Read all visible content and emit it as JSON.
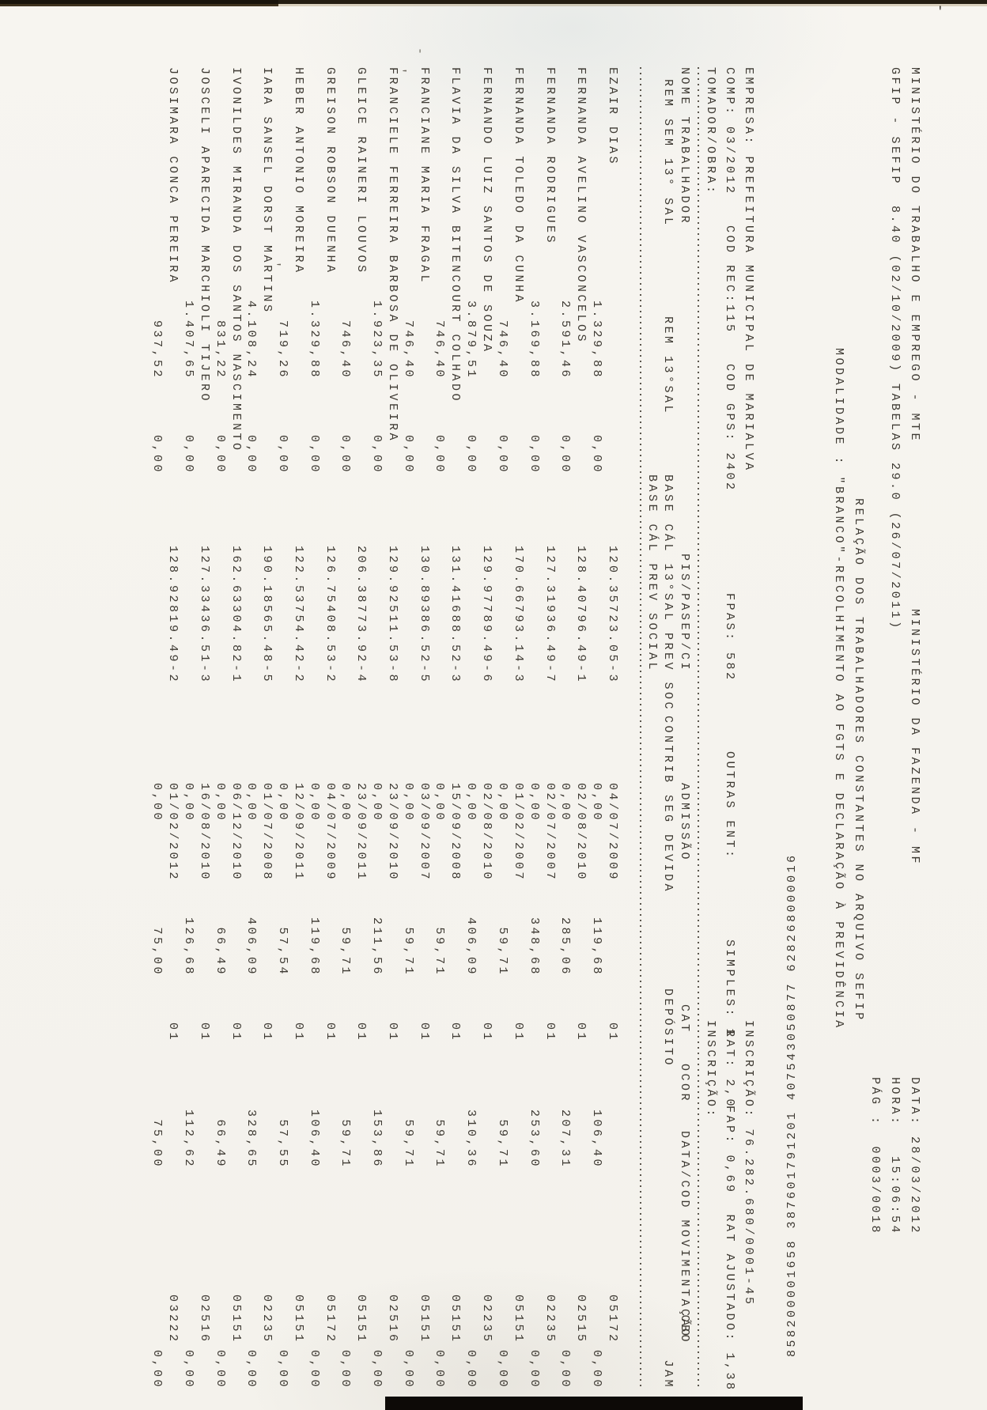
{
  "header": {
    "ministry_left": "MINISTÉRIO DO TRABALHO E EMPREGO - MTE",
    "ministry_right": "MINISTÉRIO DA FAZENDA - MF",
    "date_stamp": "DATA: 28/03/2012",
    "gfip_line": "GFIP - SEFIP  8.40 (02/10/2009) TABELAS 29.0 (26/07/2011)",
    "hora_stamp": "HORA:   15:06:54",
    "pag_stamp": "PÁG :  0003/0018",
    "report_title": "RELAÇÃO DOS TRABALHADORES CONSTANTES NO ARQUIVO SEFIP",
    "modalidade": "MODALIDADE : \"BRANCO\"-RECOLHIMENTO AO FGTS E DECLARAÇÃO À PREVIDÊNCIA",
    "barcode_digits": "858200001658 387601791201 407543050877 628268000016"
  },
  "empresa": {
    "empresa_line": "EMPRESA: PREFEITURA MUNICIPAL DE MARIALVA",
    "inscricao": "INSCRIÇÃO: 76.282.680/0001-45",
    "comp_line": "COMP: 03/2012   COD REC:115   COD GPS: 2402",
    "fpas": "FPAS: 582",
    "outras_ent": "OUTRAS ENT:",
    "simples": "SIMPLES: 1",
    "rat": "RAT: 2,0",
    "fap": "FAP: 0,69  RAT AJUSTADO: 1,38",
    "tomador": "TOMADOR/OBRA:",
    "tomador_inscricao": "INSCRIÇÃO:"
  },
  "table": {
    "headers": {
      "nome": "NOME TRABALHADOR",
      "pis": "PIS/PASEP/CI",
      "admissao": "ADMISSÃO",
      "cat": "CAT",
      "ocor": "OCOR",
      "movimentacao": "DATA/COD MOVIMENTAÇÃO",
      "cbo": "CBO",
      "rem_sem_13": "REM SEM 13° SAL",
      "rem_13": "REM 13°SAL",
      "base_13": "BASE CÁL 13°SAL PREV SOC",
      "contrib": "CONTRIB SEG DEVIDA",
      "deposito": "DEPÓSITO",
      "jam": "JAM",
      "base_prev": "BASE CÁL PREV SOCIAL"
    },
    "rows": [
      {
        "name": "EZAIR DIAS",
        "rem_sem_13": "1.329,88",
        "rem_13": "0,00",
        "pis": "120.35723.05-3",
        "base_13": "0,00",
        "admissao": "04/07/2009",
        "cat": "01",
        "contrib": "119,68",
        "deposito": "106,40",
        "cbo": "05172",
        "jam": "0,00"
      },
      {
        "name": "FERNANDA AVELINO VASCONCELOS",
        "rem_sem_13": "2.591,46",
        "rem_13": "0,00",
        "pis": "128.40796.49-1",
        "base_13": "0,00",
        "admissao": "02/08/2010",
        "cat": "01",
        "contrib": "285,06",
        "deposito": "207,31",
        "cbo": "02515",
        "jam": "0,00"
      },
      {
        "name": "FERNANDA RODRIGUES",
        "rem_sem_13": "3.169,88",
        "rem_13": "0,00",
        "pis": "127.31936.49-7",
        "base_13": "0,00",
        "admissao": "02/07/2007",
        "cat": "01",
        "contrib": "348,68",
        "deposito": "253,60",
        "cbo": "02235",
        "jam": "0,00"
      },
      {
        "name": "FERNANDA TOLEDO DA CUNHA",
        "rem_sem_13": "746,40",
        "rem_13": "0,00",
        "pis": "170.66793.14-3",
        "base_13": "0,00",
        "admissao": "01/02/2007",
        "cat": "01",
        "contrib": "59,71",
        "deposito": "59,71",
        "cbo": "05151",
        "jam": "0,00"
      },
      {
        "name": "FERNANDO LUIZ SANTOS DE SOUZA",
        "rem_sem_13": "3.879,51",
        "rem_13": "0,00",
        "pis": "129.97789.49-6",
        "base_13": "0,00",
        "admissao": "02/08/2010",
        "cat": "01",
        "contrib": "406,09",
        "deposito": "310,36",
        "cbo": "02235",
        "jam": "0,00"
      },
      {
        "name": "FLAVIA DA SILVA BITENCOURT COLHADO",
        "rem_sem_13": "746,40",
        "rem_13": "0,00",
        "pis": "131.41688.52-3",
        "base_13": "0,00",
        "admissao": "15/09/2008",
        "cat": "01",
        "contrib": "59,71",
        "deposito": "59,71",
        "cbo": "05151",
        "jam": "0,00"
      },
      {
        "name": "FRANCIANE MARIA FRAGAL",
        "rem_sem_13": "746,40",
        "rem_13": "0,00",
        "pis": "130.89386.52-5",
        "base_13": "0,00",
        "admissao": "03/09/2007",
        "cat": "01",
        "contrib": "59,71",
        "deposito": "59,71",
        "cbo": "05151",
        "jam": "0,00"
      },
      {
        "name": "FRANCIELE FERREIRA BARBOSA DE OLIVEIRA",
        "rem_sem_13": "1.923,35",
        "rem_13": "0,00",
        "pis": "129.92511.53-8",
        "base_13": "0,00",
        "admissao": "23/09/2010",
        "cat": "01",
        "contrib": "211,56",
        "deposito": "153,86",
        "cbo": "02516",
        "jam": "0,00"
      },
      {
        "name": "GLEICE RAINERI LOUVOS",
        "rem_sem_13": "746,40",
        "rem_13": "0,00",
        "pis": "206.38773.92-4",
        "base_13": "0,00",
        "admissao": "23/09/2011",
        "cat": "01",
        "contrib": "59,71",
        "deposito": "59,71",
        "cbo": "05151",
        "jam": "0,00"
      },
      {
        "name": "GREISON ROBSON DUENHA",
        "rem_sem_13": "1.329,88",
        "rem_13": "0,00",
        "pis": "126.75408.53-2",
        "base_13": "0,00",
        "admissao": "04/07/2009",
        "cat": "01",
        "contrib": "119,68",
        "deposito": "106,40",
        "cbo": "05172",
        "jam": "0,00"
      },
      {
        "name": "HEBER ANTONIO MOREIRA",
        "rem_sem_13": "719,26",
        "rem_13": "0,00",
        "pis": "122.53754.42-2",
        "base_13": "0,00",
        "admissao": "12/09/2011",
        "cat": "01",
        "contrib": "57,54",
        "deposito": "57,55",
        "cbo": "05151",
        "jam": "0,00"
      },
      {
        "name": "IARA SANSEL DORST MARTINS",
        "rem_sem_13": "4.108,24",
        "rem_13": "0,00",
        "pis": "190.18565.48-5",
        "base_13": "0,00",
        "admissao": "01/07/2008",
        "cat": "01",
        "contrib": "406,09",
        "deposito": "328,65",
        "cbo": "02235",
        "jam": "0,00"
      },
      {
        "name": "IVONILDES MIRANDA DOS SANTOS NASCIMENTO",
        "rem_sem_13": "831,22",
        "rem_13": "0,00",
        "pis": "162.63304.82-1",
        "base_13": "0,00",
        "admissao": "06/12/2010",
        "cat": "01",
        "contrib": "66,49",
        "deposito": "66,49",
        "cbo": "05151",
        "jam": "0,00"
      },
      {
        "name": "JOSCELI APARECIDA MARCHIOLI TIJERO",
        "rem_sem_13": "1.407,65",
        "rem_13": "0,00",
        "pis": "127.33436.51-3",
        "base_13": "0,00",
        "admissao": "16/08/2010",
        "cat": "01",
        "contrib": "126,68",
        "deposito": "112,62",
        "cbo": "02516",
        "jam": "0,00"
      },
      {
        "name": "JOSIMARA CONCA PEREIRA",
        "rem_sem_13": "937,52",
        "rem_13": "0,00",
        "pis": "128.92819.49-2",
        "base_13": "0,00",
        "admissao": "01/02/2012",
        "cat": "01",
        "contrib": "75,00",
        "deposito": "75,00",
        "cbo": "03222",
        "jam": "0,00"
      }
    ]
  },
  "artifacts": {
    "top_right_mark": "'",
    "stray_marks": [
      "-",
      "'",
      "'"
    ]
  }
}
